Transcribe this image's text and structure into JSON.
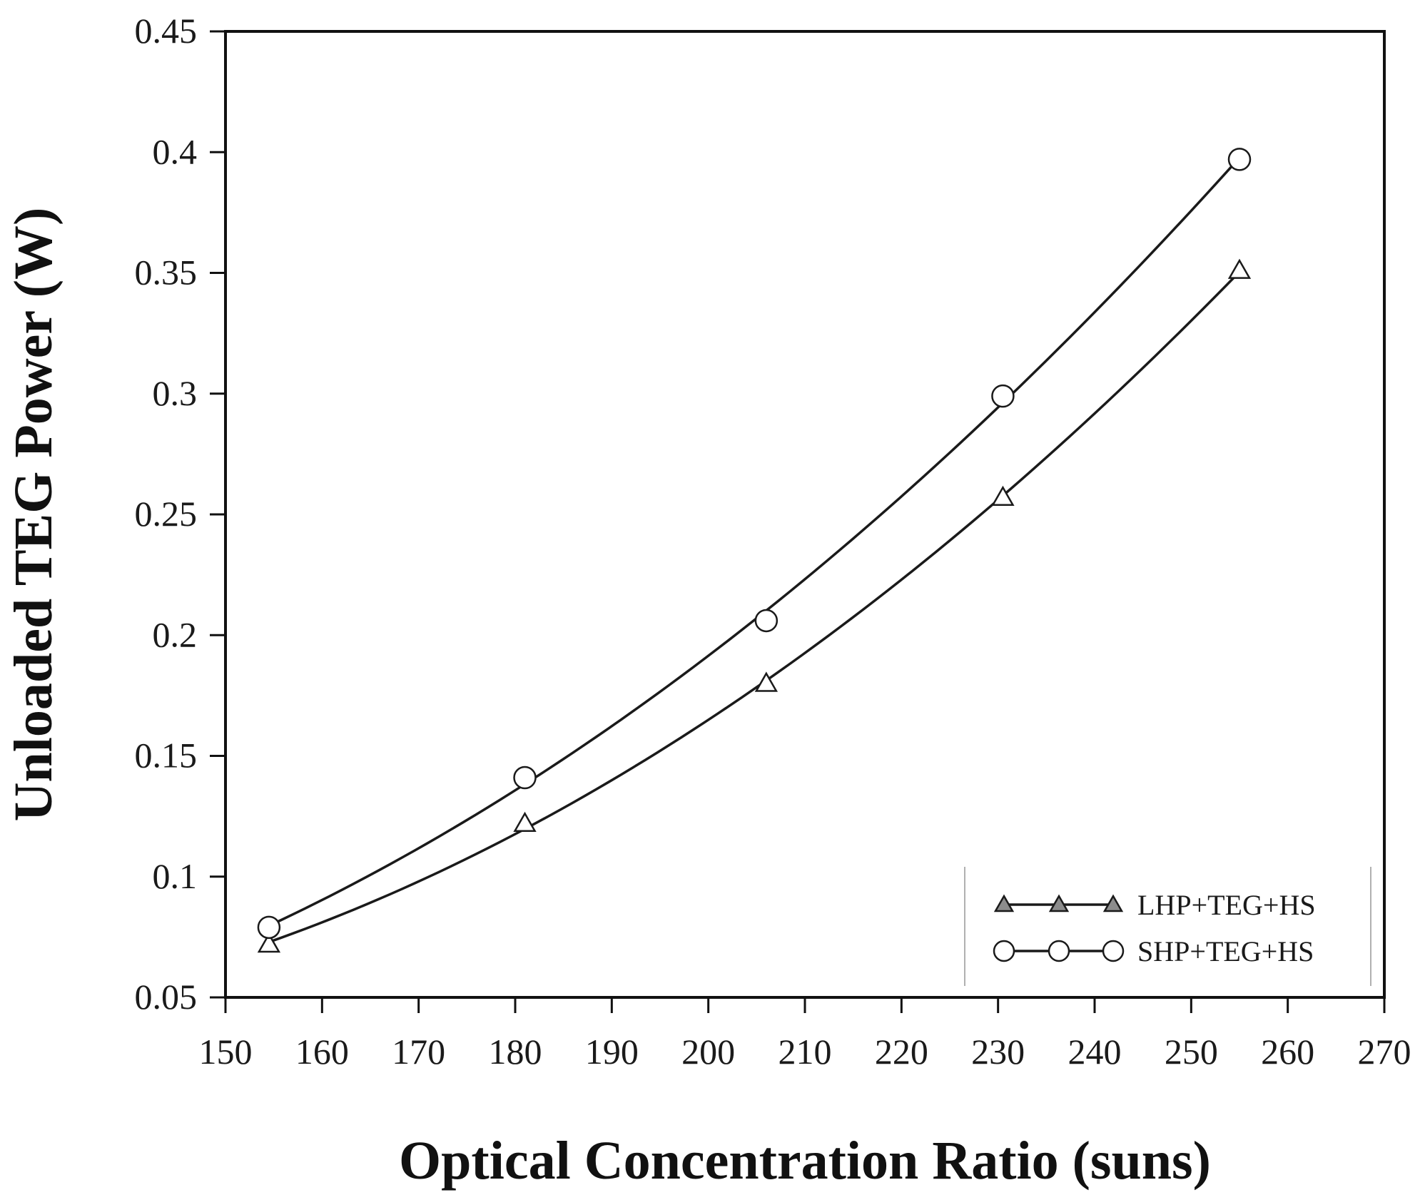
{
  "chart_data": {
    "type": "line",
    "title": "",
    "xlabel": "Optical Concentration Ratio (suns)",
    "ylabel": "Unloaded TEG Power (W)",
    "xlim": [
      150,
      270
    ],
    "ylim": [
      0.05,
      0.45
    ],
    "xticks": [
      150,
      160,
      170,
      180,
      190,
      200,
      210,
      220,
      230,
      240,
      250,
      260,
      270
    ],
    "yticks": [
      0.05,
      0.1,
      0.15,
      0.2,
      0.25,
      0.3,
      0.35,
      0.4,
      0.45
    ],
    "xtick_labels": [
      "150",
      "160",
      "170",
      "180",
      "190",
      "200",
      "210",
      "220",
      "230",
      "240",
      "250",
      "260",
      "270"
    ],
    "ytick_labels": [
      "0.05",
      "0.1",
      "0.15",
      "0.2",
      "0.25",
      "0.3",
      "0.35",
      "0.4",
      "0.45"
    ],
    "grid": false,
    "legend_position": "bottom-right",
    "series": [
      {
        "name": "LHP+TEG+HS",
        "marker": "triangle",
        "x": [
          154.5,
          181,
          206,
          230.5,
          255
        ],
        "y": [
          0.072,
          0.122,
          0.18,
          0.257,
          0.351
        ]
      },
      {
        "name": "SHP+TEG+HS",
        "marker": "circle",
        "x": [
          154.5,
          181,
          206,
          230.5,
          255
        ],
        "y": [
          0.079,
          0.141,
          0.206,
          0.299,
          0.397
        ]
      }
    ],
    "colors": {
      "line": "#1a1a1a",
      "marker_fill": "#ffffff",
      "triangle_fill": "#8c8c8c",
      "axis": "#111111",
      "legend_border": "#b0b0b0"
    }
  }
}
